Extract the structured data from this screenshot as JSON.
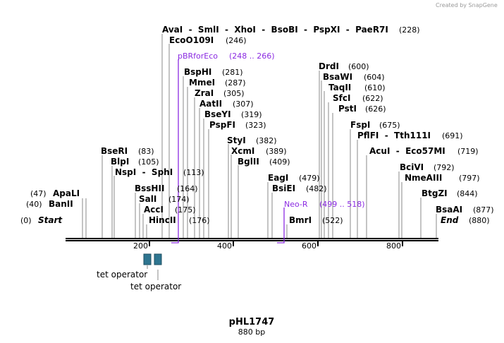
{
  "title": "pHL1747",
  "subtitle": "880 bp",
  "credit": "Created by SnapGene",
  "colors": {
    "feature": "#8b2be2",
    "operator": "#2e7590",
    "line": "#888888"
  },
  "start_label": "Start",
  "start_pos": "(0)",
  "end_label": "End",
  "end_pos": "(880)",
  "axis_ticks": [
    "200",
    "400",
    "600",
    "800"
  ],
  "enzymes_left": [
    {
      "name": "ApaLI",
      "pos": "(47)"
    },
    {
      "name": "BanII",
      "pos": "(40)"
    }
  ],
  "enzymes": [
    {
      "name": "BseRI",
      "pos": "(83)"
    },
    {
      "name": "BlpI",
      "pos": "(105)"
    },
    {
      "name": "NspI  -  SphI",
      "pos": "(113)"
    },
    {
      "name": "BssHII",
      "pos": "(164)"
    },
    {
      "name": "SalI",
      "pos": "(174)"
    },
    {
      "name": "AccI",
      "pos": "(175)"
    },
    {
      "name": "HincII",
      "pos": "(176)"
    },
    {
      "name": "AvaI  -  SmlI  -  XhoI  -  BsoBI  -  PspXI  -  PaeR7I",
      "pos": "(228)"
    },
    {
      "name": "EcoO109I",
      "pos": "(246)"
    },
    {
      "name": "BspHI",
      "pos": "(281)"
    },
    {
      "name": "MmeI",
      "pos": "(287)"
    },
    {
      "name": "ZraI",
      "pos": "(305)"
    },
    {
      "name": "AatII",
      "pos": "(307)"
    },
    {
      "name": "BseYI",
      "pos": "(319)"
    },
    {
      "name": "PspFI",
      "pos": "(323)"
    },
    {
      "name": "StyI",
      "pos": "(382)"
    },
    {
      "name": "XcmI",
      "pos": "(389)"
    },
    {
      "name": "BglII",
      "pos": "(409)"
    },
    {
      "name": "EagI",
      "pos": "(479)"
    },
    {
      "name": "BsiEI",
      "pos": "(482)"
    },
    {
      "name": "BmrI",
      "pos": "(522)"
    },
    {
      "name": "DrdI",
      "pos": "(600)"
    },
    {
      "name": "BsaWI",
      "pos": "(604)"
    },
    {
      "name": "TaqII",
      "pos": "(610)"
    },
    {
      "name": "SfcI",
      "pos": "(622)"
    },
    {
      "name": "PstI",
      "pos": "(626)"
    },
    {
      "name": "FspI",
      "pos": "(675)"
    },
    {
      "name": "PflFI  -  Tth111I",
      "pos": "(691)"
    },
    {
      "name": "AcuI  -  Eco57MI",
      "pos": "(719)"
    },
    {
      "name": "BciVI",
      "pos": "(792)"
    },
    {
      "name": "NmeAIII",
      "pos": "(797)"
    },
    {
      "name": "BtgZI",
      "pos": "(844)"
    },
    {
      "name": "BsaAI",
      "pos": "(877)"
    }
  ],
  "features": [
    {
      "name": "pBRforEco",
      "range": "(248 .. 266)"
    },
    {
      "name": "Neo-R",
      "range": "(499 .. 518)"
    }
  ],
  "operators": [
    "tet operator",
    "tet operator"
  ]
}
